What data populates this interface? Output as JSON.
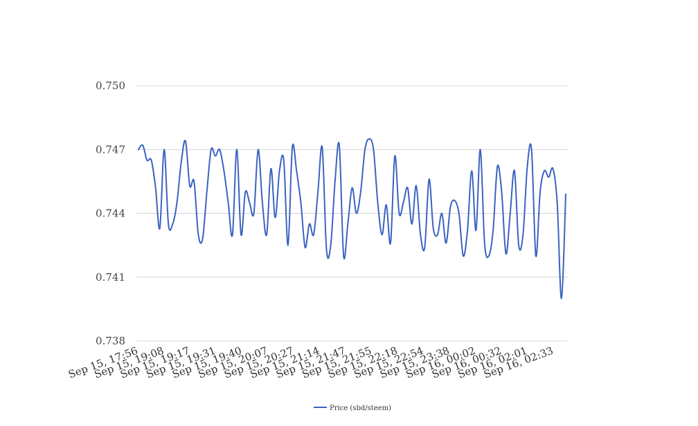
{
  "chart_data": {
    "type": "line",
    "title": "",
    "xlabel": "",
    "ylabel": "",
    "ylim": [
      0.738,
      0.75
    ],
    "y_ticks": [
      "0.750",
      "0.747",
      "0.744",
      "0.741",
      "0.738"
    ],
    "y_tick_values": [
      0.75,
      0.747,
      0.744,
      0.741,
      0.738
    ],
    "x_tick_labels": [
      "Sep 15, 17:56",
      "Sep 15, 19:08",
      "Sep 15, 19:17",
      "Sep 15, 19:31",
      "Sep 15, 19:40",
      "Sep 15, 20:07",
      "Sep 15, 20:27",
      "Sep 15, 21:14",
      "Sep 15, 21:47",
      "Sep 15, 21:55",
      "Sep 15, 22:18",
      "Sep 15, 22:54",
      "Sep 15, 23:38",
      "Sep 16, 00:02",
      "Sep 16, 00:32",
      "Sep 16, 02:01",
      "Sep 16, 02:33"
    ],
    "grid": true,
    "legend": "bottom",
    "series": [
      {
        "name": "Price (sbd/steem)",
        "color": "#3a62c0",
        "values": [
          0.747,
          0.7472,
          0.7465,
          0.7465,
          0.7452,
          0.7433,
          0.747,
          0.7435,
          0.7435,
          0.7445,
          0.7464,
          0.7474,
          0.7453,
          0.7455,
          0.743,
          0.7428,
          0.745,
          0.747,
          0.7467,
          0.747,
          0.746,
          0.7445,
          0.743,
          0.747,
          0.743,
          0.745,
          0.7445,
          0.744,
          0.747,
          0.7445,
          0.743,
          0.7461,
          0.7438,
          0.746,
          0.7465,
          0.7425,
          0.7471,
          0.746,
          0.7445,
          0.7424,
          0.7435,
          0.743,
          0.745,
          0.7471,
          0.7423,
          0.7425,
          0.7455,
          0.7472,
          0.742,
          0.7435,
          0.7452,
          0.744,
          0.745,
          0.747,
          0.7475,
          0.747,
          0.7445,
          0.743,
          0.7444,
          0.7426,
          0.7467,
          0.744,
          0.7445,
          0.7452,
          0.7435,
          0.7453,
          0.743,
          0.7424,
          0.7456,
          0.7433,
          0.743,
          0.744,
          0.7426,
          0.7443,
          0.7446,
          0.744,
          0.742,
          0.7432,
          0.746,
          0.7432,
          0.747,
          0.7426,
          0.742,
          0.7432,
          0.7462,
          0.745,
          0.7421,
          0.744,
          0.746,
          0.7425,
          0.743,
          0.7462,
          0.747,
          0.742,
          0.745,
          0.746,
          0.7457,
          0.7461,
          0.7445,
          0.74,
          0.7449
        ]
      }
    ]
  }
}
